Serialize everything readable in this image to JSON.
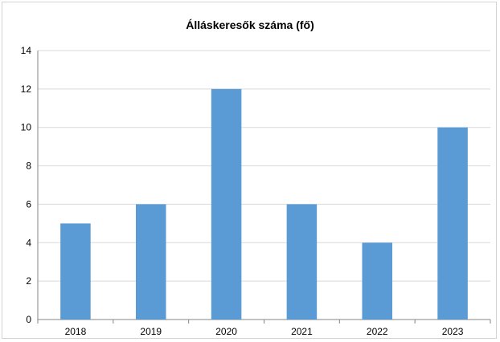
{
  "chart_data": {
    "type": "bar",
    "title": "Álláskeresők száma (fő)",
    "categories": [
      "2018",
      "2019",
      "2020",
      "2021",
      "2022",
      "2023"
    ],
    "values": [
      5,
      6,
      12,
      6,
      4,
      10
    ],
    "ylim": [
      0,
      14
    ],
    "yticks": [
      0,
      2,
      4,
      6,
      8,
      10,
      12,
      14
    ],
    "grid": true,
    "legend": "none",
    "colors": {
      "bar": "#5b9bd5",
      "grid": "#d9d9d9",
      "axis": "#868686"
    }
  }
}
